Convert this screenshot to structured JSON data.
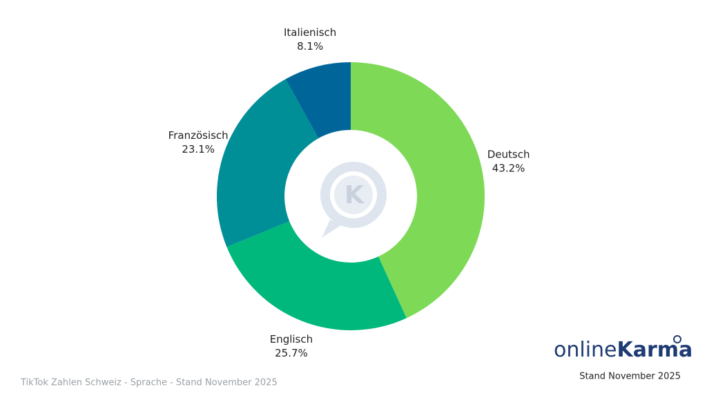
{
  "chart_data": {
    "type": "donut",
    "categories": [
      "Deutsch",
      "Englisch",
      "Französisch",
      "Italienisch"
    ],
    "values": [
      43.2,
      25.7,
      23.1,
      8.1
    ],
    "value_labels": [
      "43.2%",
      "25.7%",
      "23.1%",
      "8.1%"
    ],
    "colors": [
      "#7ed957",
      "#00b87c",
      "#008e97",
      "#006699"
    ],
    "footer": "TikTok Zahlen Schweiz - Sprache - Stand November 2025",
    "brand_prefix": "online",
    "brand_name": "Karma",
    "stand": "Stand November 2025"
  }
}
